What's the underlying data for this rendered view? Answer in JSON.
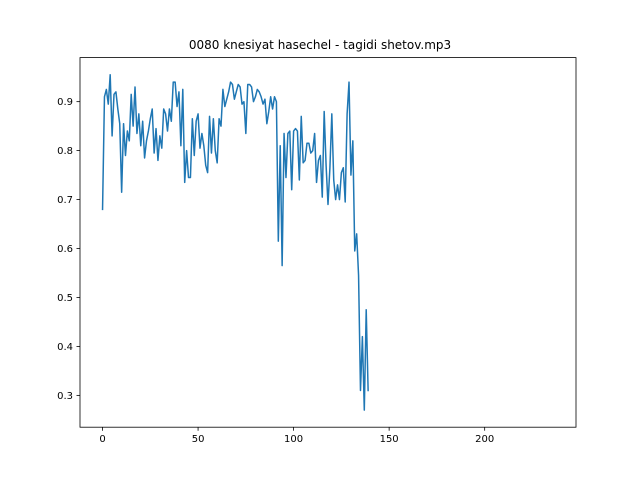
{
  "chart_data": {
    "type": "line",
    "title": "0080 knesiyat hasechel - tagidi shetov.mp3",
    "xlabel": "",
    "ylabel": "",
    "xlim": [
      -11.8,
      247.8
    ],
    "ylim": [
      0.235,
      0.99
    ],
    "xticks": [
      0,
      50,
      100,
      150,
      200
    ],
    "yticks": [
      0.3,
      0.4,
      0.5,
      0.6,
      0.7,
      0.8,
      0.9
    ],
    "grid": false,
    "color": "#1f77b4",
    "series": [
      {
        "values": [
          0.68,
          0.91,
          0.925,
          0.895,
          0.955,
          0.83,
          0.915,
          0.92,
          0.885,
          0.855,
          0.715,
          0.855,
          0.79,
          0.84,
          0.82,
          0.915,
          0.85,
          0.93,
          0.835,
          0.875,
          0.81,
          0.86,
          0.785,
          0.82,
          0.84,
          0.865,
          0.885,
          0.795,
          0.845,
          0.78,
          0.83,
          0.805,
          0.885,
          0.875,
          0.84,
          0.885,
          0.86,
          0.94,
          0.94,
          0.89,
          0.92,
          0.81,
          0.925,
          0.735,
          0.8,
          0.745,
          0.745,
          0.865,
          0.79,
          0.86,
          0.875,
          0.805,
          0.835,
          0.81,
          0.77,
          0.755,
          0.87,
          0.795,
          0.865,
          0.8,
          0.775,
          0.865,
          0.85,
          0.925,
          0.89,
          0.905,
          0.92,
          0.94,
          0.935,
          0.905,
          0.92,
          0.935,
          0.93,
          0.895,
          0.9,
          0.835,
          0.935,
          0.935,
          0.93,
          0.9,
          0.91,
          0.925,
          0.92,
          0.91,
          0.895,
          0.905,
          0.855,
          0.88,
          0.91,
          0.885,
          0.91,
          0.9,
          0.615,
          0.81,
          0.565,
          0.835,
          0.745,
          0.835,
          0.84,
          0.72,
          0.84,
          0.845,
          0.84,
          0.74,
          0.87,
          0.775,
          0.78,
          0.815,
          0.815,
          0.795,
          0.8,
          0.835,
          0.735,
          0.78,
          0.79,
          0.705,
          0.88,
          0.77,
          0.69,
          0.765,
          0.875,
          0.74,
          0.7,
          0.73,
          0.7,
          0.755,
          0.765,
          0.695,
          0.875,
          0.94,
          0.75,
          0.82,
          0.595,
          0.63,
          0.545,
          0.31,
          0.42,
          0.27,
          0.475,
          0.31
        ]
      }
    ]
  }
}
